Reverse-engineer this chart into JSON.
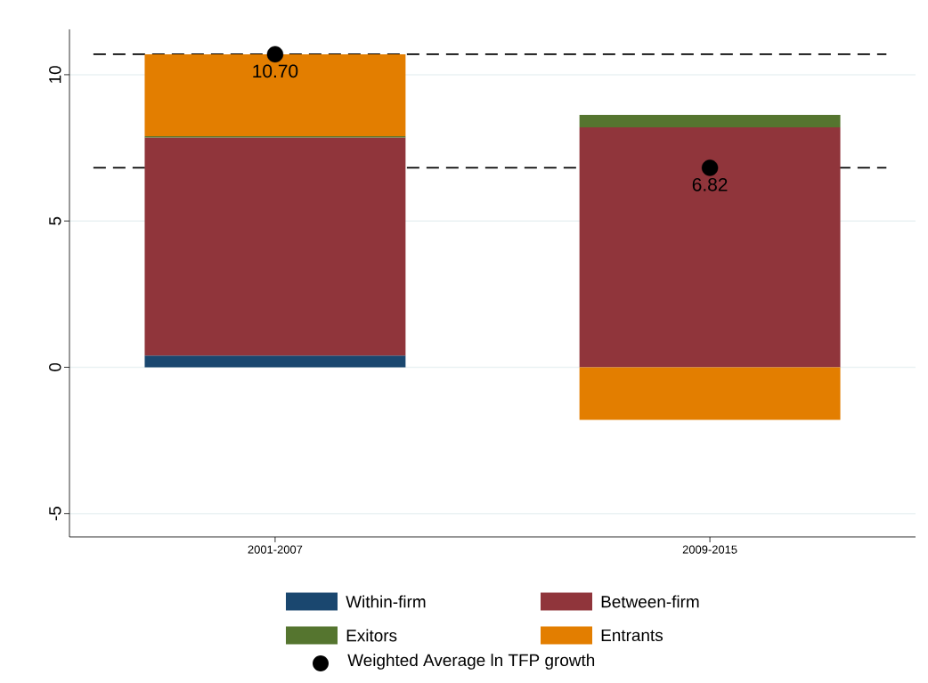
{
  "chart_data": {
    "type": "bar",
    "stacked": true,
    "categories": [
      "2001-2007",
      "2009-2015"
    ],
    "series": [
      {
        "name": "Within-firm",
        "color": "#1a476f",
        "values": [
          0.4,
          0
        ]
      },
      {
        "name": "Between-firm",
        "color": "#90353b",
        "values": [
          7.45,
          8.2
        ]
      },
      {
        "name": "Exitors",
        "color": "#55752f",
        "values": [
          0.05,
          0.43
        ]
      },
      {
        "name": "Entrants",
        "color": "#e37e00",
        "values": [
          2.8,
          -1.8
        ]
      },
      {
        "name": "Weighted Average ln TFP growth",
        "type": "scatter",
        "marker": "circle",
        "color": "#000000",
        "x": [
          "2001-2007",
          "2009-2015"
        ],
        "values": [
          10.7,
          6.82
        ],
        "value_labels": [
          "10.70",
          "6.82"
        ]
      }
    ],
    "ylim": [
      -5.8,
      11.55
    ],
    "yticks": [
      -5,
      0,
      5,
      10
    ],
    "grid": "y",
    "legend": "bottom",
    "ref_lines": [
      {
        "axis": "y",
        "value": 10.7,
        "line_style": "dashed",
        "color": "#000000"
      },
      {
        "axis": "y",
        "value": 6.82,
        "line_style": "dashed",
        "color": "#000000"
      }
    ]
  }
}
